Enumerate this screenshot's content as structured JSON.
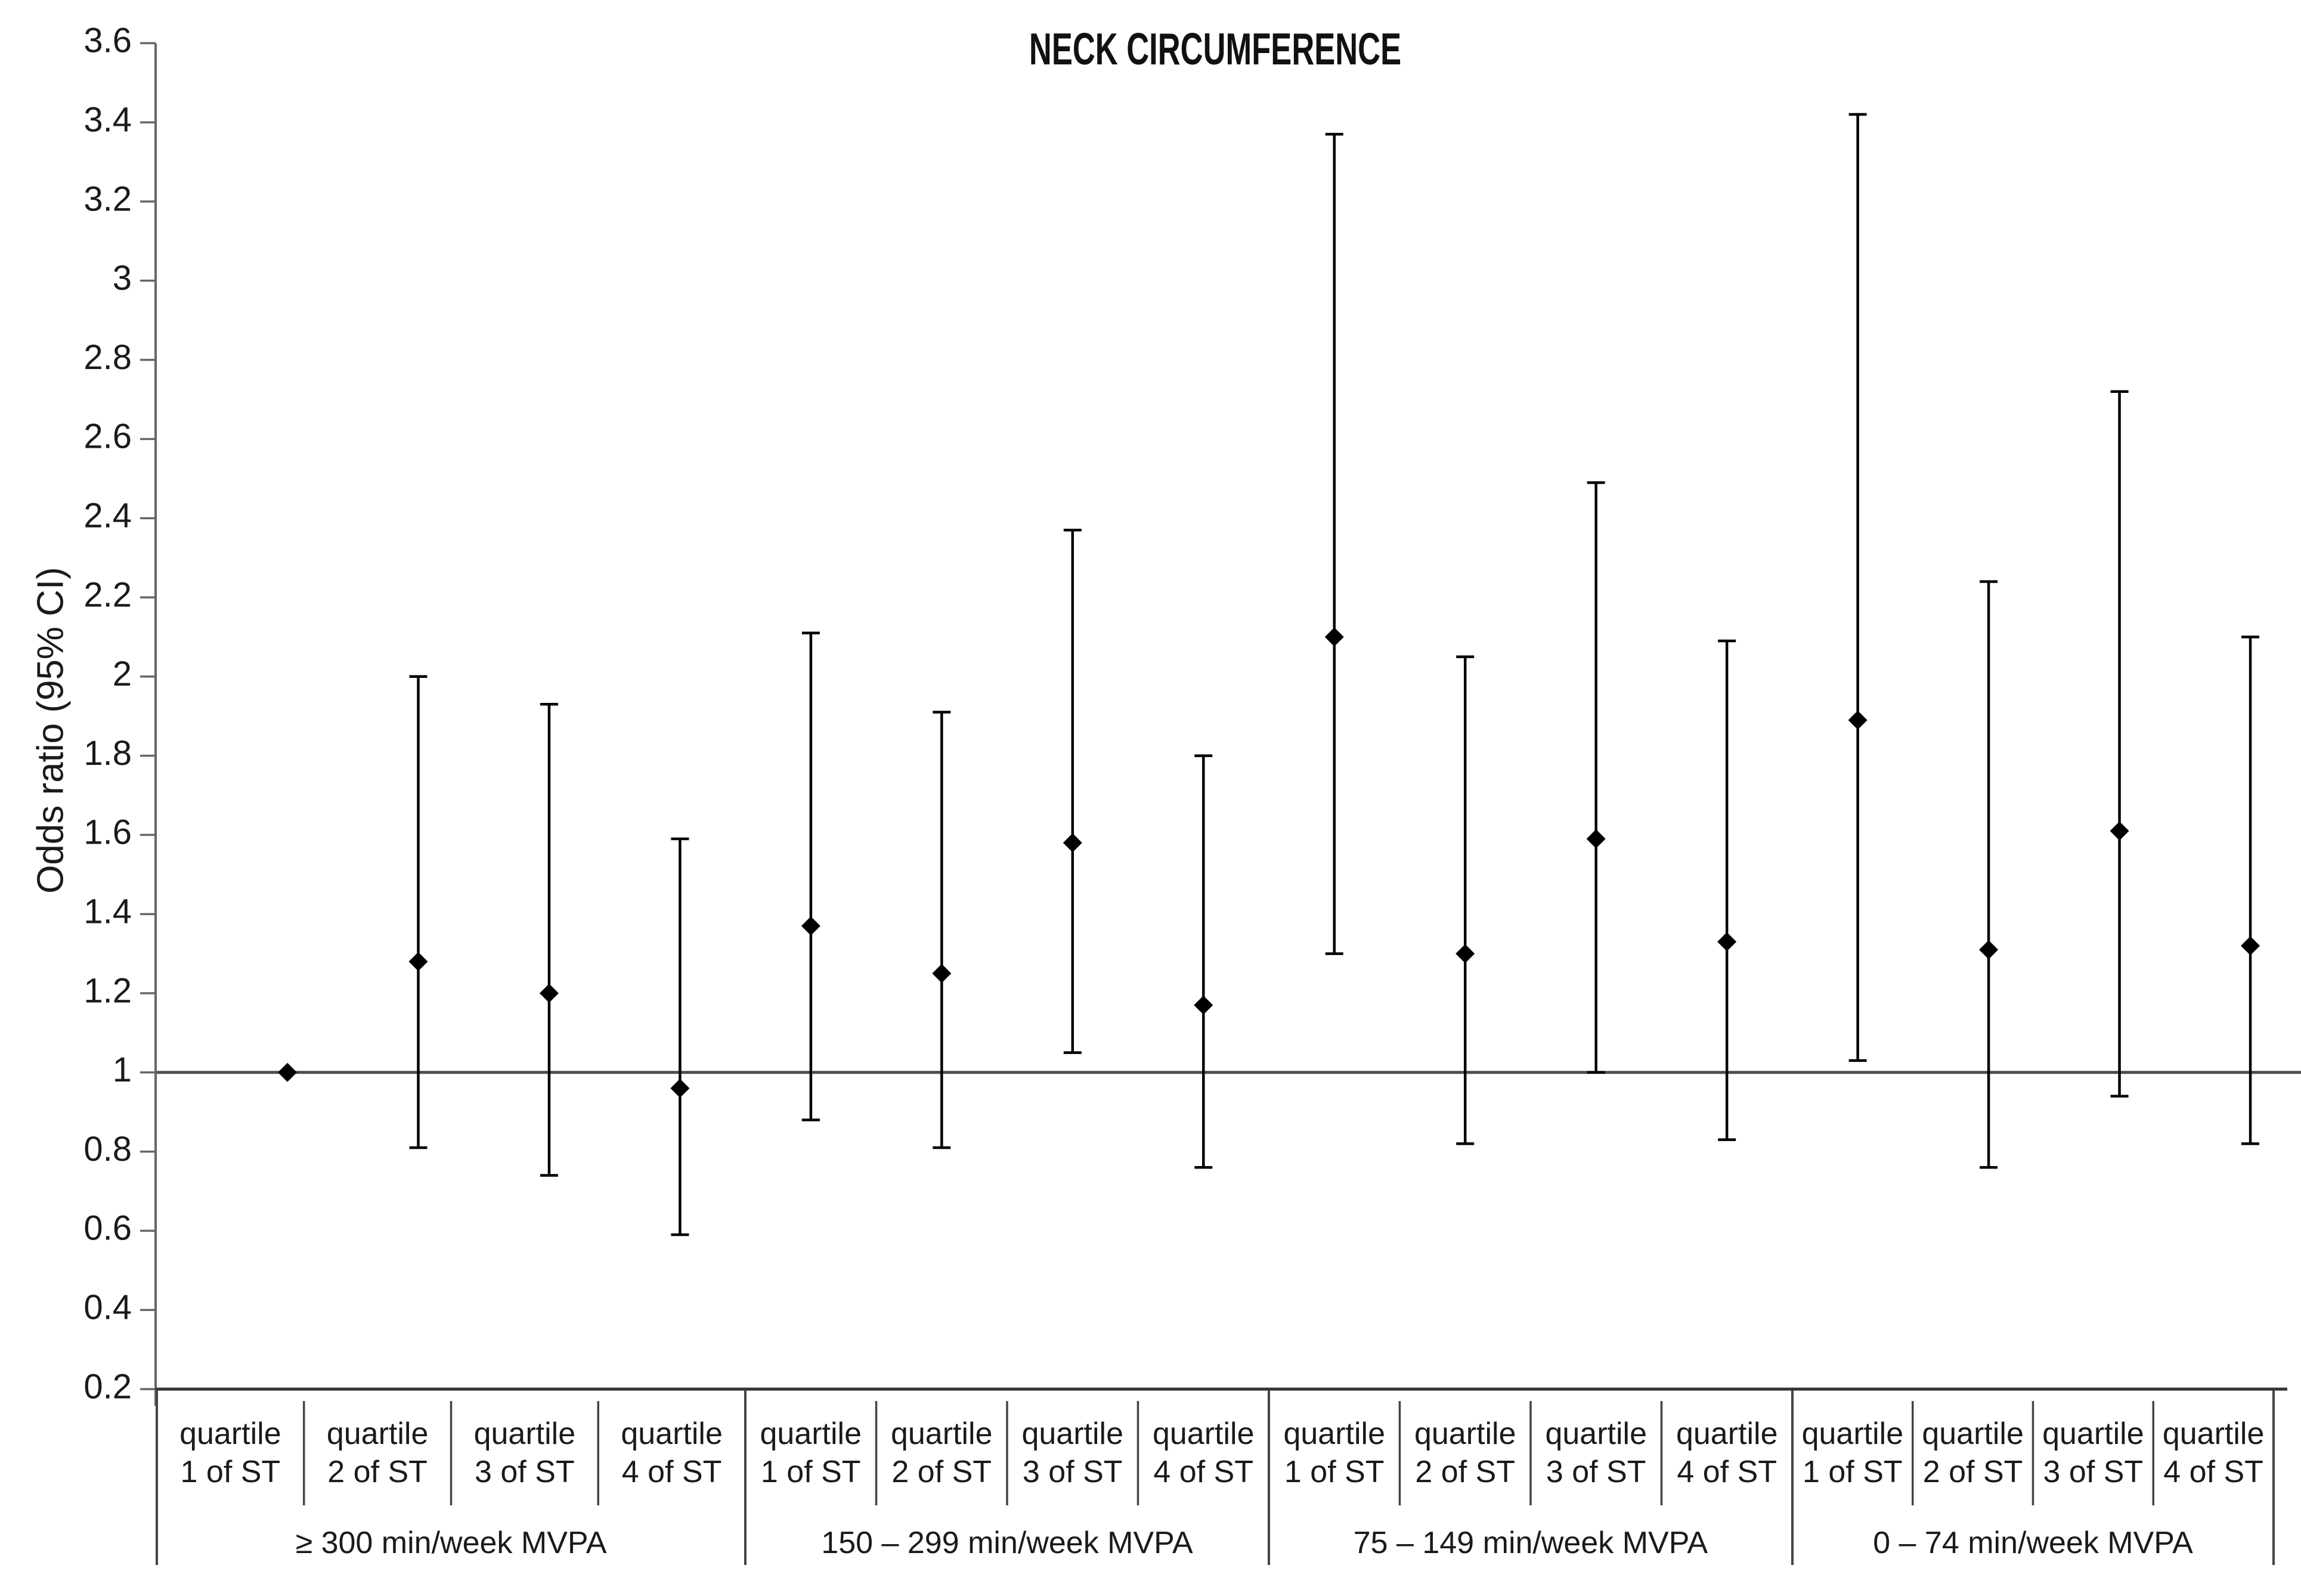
{
  "chart_data": {
    "type": "scatter",
    "subtype": "forest-plot-error-bars",
    "title": "NECK CIRCUMFERENCE",
    "ylabel": "Odds ratio (95% CI)",
    "ylim": [
      0.2,
      3.6
    ],
    "ytick_step": 0.2,
    "ytick_labels": [
      "0.2",
      "0.4",
      "0.6",
      "0.8",
      "1",
      "1.2",
      "1.4",
      "1.6",
      "1.8",
      "2",
      "2.2",
      "2.4",
      "2.6",
      "2.8",
      "3",
      "3.2",
      "3.4",
      "3.6"
    ],
    "grid": false,
    "legend": false,
    "reference_line_y": 1.0,
    "marker": "diamond",
    "colors": {
      "marker": "#000000",
      "error_bar": "#000000",
      "axis": "#666666",
      "x_axis": "#333333",
      "reference_line": "#4d4d4d",
      "separator": "#444444",
      "text": "#1a1a1a"
    },
    "groups": [
      {
        "label": "≥ 300 min/week MVPA",
        "points": [
          {
            "quartile_label": [
              "quartile",
              "1 of ST"
            ],
            "or": 1.0,
            "ci_low": null,
            "ci_high": null
          },
          {
            "quartile_label": [
              "quartile",
              "2 of ST"
            ],
            "or": 1.28,
            "ci_low": 0.81,
            "ci_high": 2.0
          },
          {
            "quartile_label": [
              "quartile",
              "3 of ST"
            ],
            "or": 1.2,
            "ci_low": 0.74,
            "ci_high": 1.93
          },
          {
            "quartile_label": [
              "quartile",
              "4 of ST"
            ],
            "or": 0.96,
            "ci_low": 0.59,
            "ci_high": 1.59
          }
        ]
      },
      {
        "label": "150 – 299 min/week MVPA",
        "points": [
          {
            "quartile_label": [
              "quartile",
              "1 of ST"
            ],
            "or": 1.37,
            "ci_low": 0.88,
            "ci_high": 2.11
          },
          {
            "quartile_label": [
              "quartile",
              "2 of ST"
            ],
            "or": 1.25,
            "ci_low": 0.81,
            "ci_high": 1.91
          },
          {
            "quartile_label": [
              "quartile",
              "3 of ST"
            ],
            "or": 1.58,
            "ci_low": 1.05,
            "ci_high": 2.37
          },
          {
            "quartile_label": [
              "quartile",
              "4 of ST"
            ],
            "or": 1.17,
            "ci_low": 0.76,
            "ci_high": 1.8
          }
        ]
      },
      {
        "label": "75 – 149 min/week MVPA",
        "points": [
          {
            "quartile_label": [
              "quartile",
              "1 of ST"
            ],
            "or": 2.1,
            "ci_low": 1.3,
            "ci_high": 3.37
          },
          {
            "quartile_label": [
              "quartile",
              "2 of ST"
            ],
            "or": 1.3,
            "ci_low": 0.82,
            "ci_high": 2.05
          },
          {
            "quartile_label": [
              "quartile",
              "3 of ST"
            ],
            "or": 1.59,
            "ci_low": 1.0,
            "ci_high": 2.49
          },
          {
            "quartile_label": [
              "quartile",
              "4 of ST"
            ],
            "or": 1.33,
            "ci_low": 0.83,
            "ci_high": 2.09
          }
        ]
      },
      {
        "label": "0 – 74 min/week MVPA",
        "points": [
          {
            "quartile_label": [
              "quartile",
              "1 of ST"
            ],
            "or": 1.89,
            "ci_low": 1.03,
            "ci_high": 3.42
          },
          {
            "quartile_label": [
              "quartile",
              "2 of ST"
            ],
            "or": 1.31,
            "ci_low": 0.76,
            "ci_high": 2.24
          },
          {
            "quartile_label": [
              "quartile",
              "3 of ST"
            ],
            "or": 1.61,
            "ci_low": 0.94,
            "ci_high": 2.72
          },
          {
            "quartile_label": [
              "quartile",
              "4 of ST"
            ],
            "or": 1.32,
            "ci_low": 0.82,
            "ci_high": 2.1
          }
        ]
      }
    ]
  }
}
